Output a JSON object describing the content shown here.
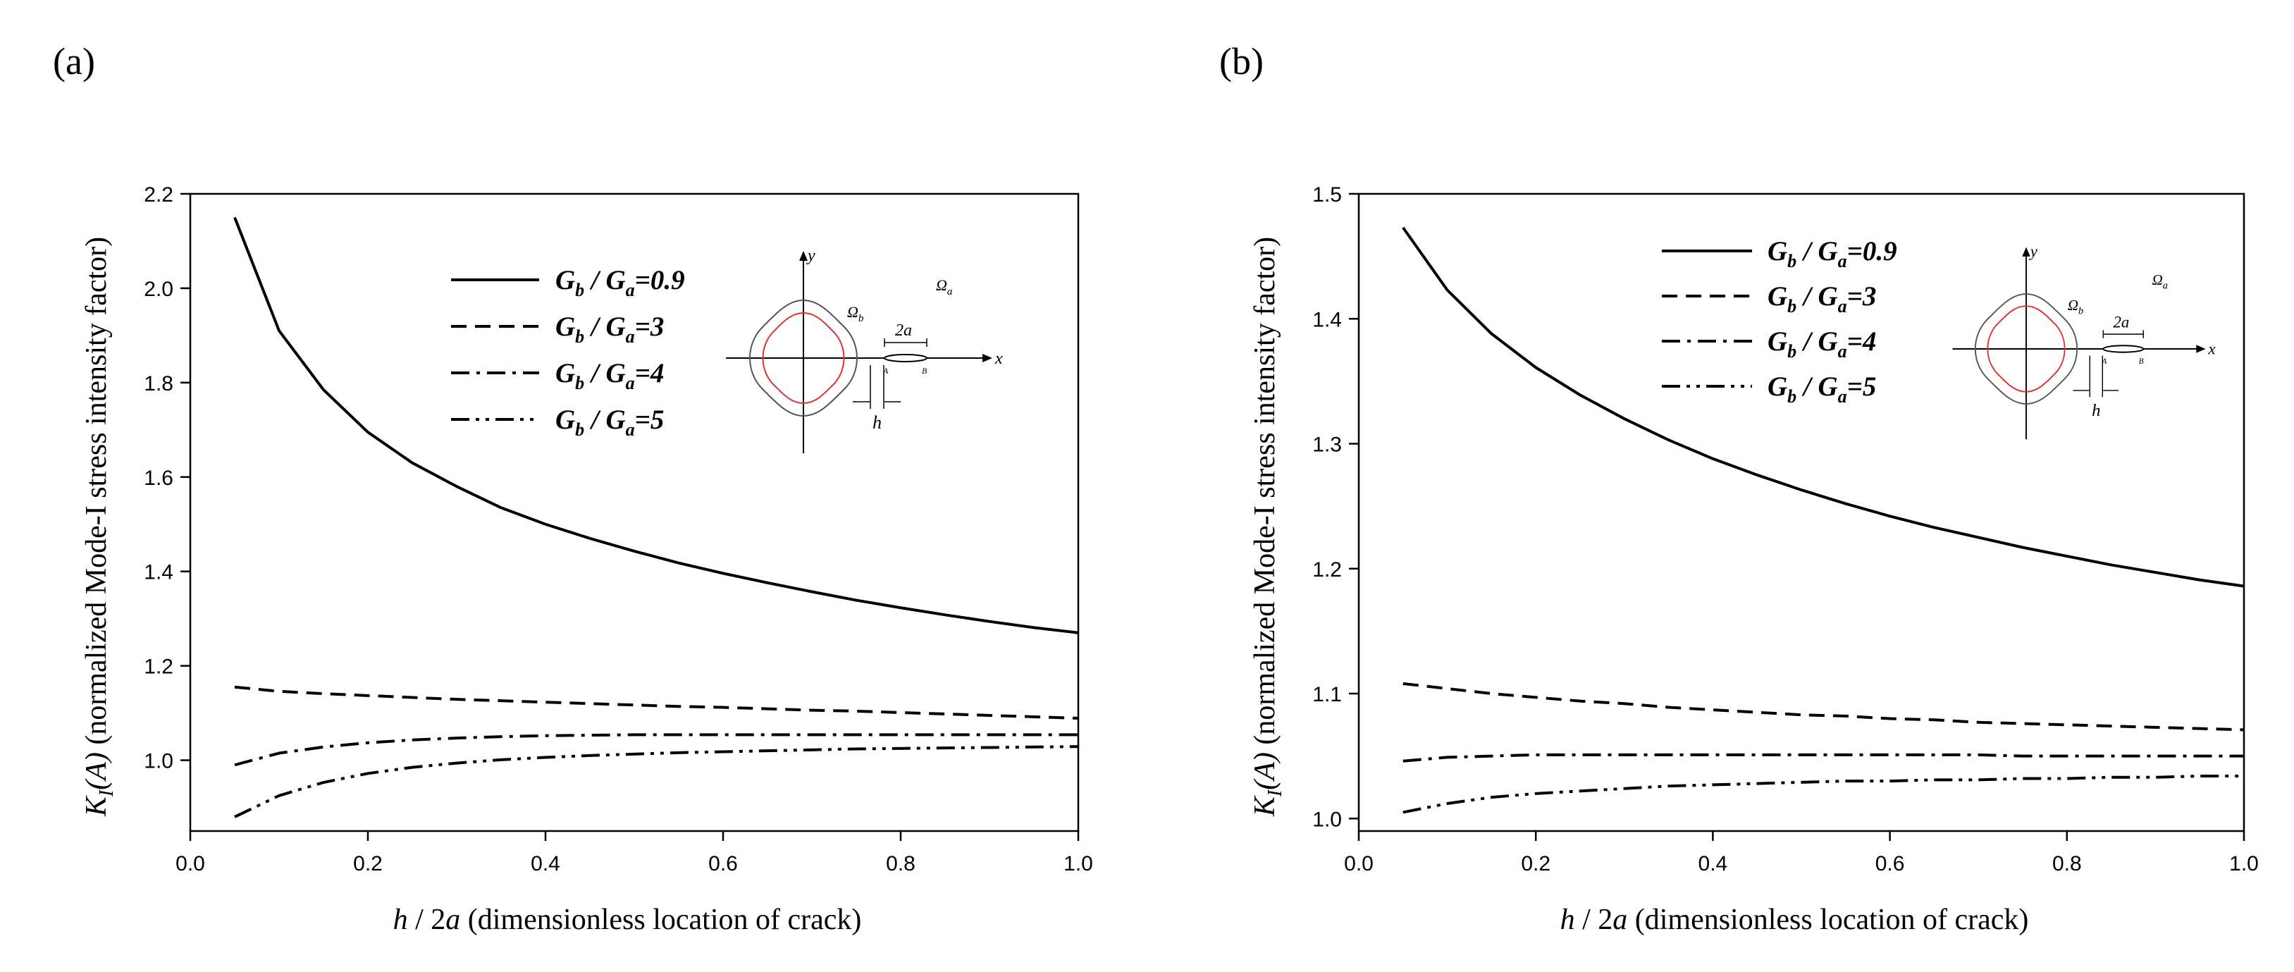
{
  "chart_data": [
    {
      "panel_label": "(a)",
      "type": "line",
      "title": "",
      "xlabel": {
        "var": "h",
        "sep": " / 2",
        "var2": "a",
        "desc": " (dimensionless location of crack)"
      },
      "ylabel": {
        "K": "K",
        "sub": "I",
        "arg": "(A)",
        "desc": " (normalized Mode-I stress intensity factor)"
      },
      "xlim": [
        0.0,
        1.0
      ],
      "ylim": [
        0.85,
        2.2
      ],
      "xticks": [
        0.0,
        0.2,
        0.4,
        0.6,
        0.8,
        1.0
      ],
      "xtick_labels": [
        "0.0",
        "0.2",
        "0.4",
        "0.6",
        "0.8",
        "1.0"
      ],
      "yticks": [
        1.0,
        1.2,
        1.4,
        1.6,
        1.8,
        2.0,
        2.2
      ],
      "ytick_labels": [
        "1.0",
        "1.2",
        "1.4",
        "1.6",
        "1.8",
        "2.0",
        "2.2"
      ],
      "grid": false,
      "legend_position": "top-center",
      "x": [
        0.05,
        0.1,
        0.15,
        0.2,
        0.25,
        0.3,
        0.35,
        0.4,
        0.45,
        0.5,
        0.55,
        0.6,
        0.65,
        0.7,
        0.75,
        0.8,
        0.85,
        0.9,
        0.95,
        1.0
      ],
      "series": [
        {
          "name": "Gb/Ga=0.9",
          "label_a": "G",
          "sub_a": "b",
          "label_b": " / G",
          "sub_b": "a",
          "label_val": "=0.9",
          "style": "solid",
          "values": [
            2.15,
            1.91,
            1.785,
            1.695,
            1.63,
            1.58,
            1.535,
            1.5,
            1.47,
            1.443,
            1.418,
            1.396,
            1.376,
            1.357,
            1.339,
            1.323,
            1.308,
            1.294,
            1.281,
            1.27
          ]
        },
        {
          "name": "Gb/Ga=3",
          "label_a": "G",
          "sub_a": "b",
          "label_b": " / G",
          "sub_b": "a",
          "label_val": "=3",
          "style": "dashed",
          "values": [
            1.155,
            1.146,
            1.141,
            1.137,
            1.133,
            1.129,
            1.126,
            1.123,
            1.12,
            1.117,
            1.114,
            1.112,
            1.109,
            1.106,
            1.104,
            1.101,
            1.098,
            1.095,
            1.092,
            1.089
          ]
        },
        {
          "name": "Gb/Ga=4",
          "label_a": "G",
          "sub_a": "b",
          "label_b": " / G",
          "sub_b": "a",
          "label_val": "=4",
          "style": "dashdot",
          "values": [
            0.99,
            1.015,
            1.028,
            1.037,
            1.043,
            1.047,
            1.05,
            1.052,
            1.053,
            1.054,
            1.054,
            1.054,
            1.054,
            1.054,
            1.054,
            1.054,
            1.054,
            1.054,
            1.054,
            1.054
          ]
        },
        {
          "name": "Gb/Ga=5",
          "label_a": "G",
          "sub_a": "b",
          "label_b": " / G",
          "sub_b": "a",
          "label_val": "=5",
          "style": "dashdotdot",
          "values": [
            0.88,
            0.925,
            0.953,
            0.972,
            0.985,
            0.994,
            1.001,
            1.006,
            1.01,
            1.013,
            1.016,
            1.018,
            1.02,
            1.022,
            1.024,
            1.025,
            1.026,
            1.027,
            1.028,
            1.029
          ]
        }
      ],
      "inset": {
        "y": "y",
        "x": "x",
        "omega_b": "Ω",
        "omega_b_sub": "b",
        "omega_a": "Ω",
        "omega_a_sub": "a",
        "crack_len": "2a",
        "h": "h",
        "A": "A",
        "B": "B"
      }
    },
    {
      "panel_label": "(b)",
      "type": "line",
      "title": "",
      "xlabel": {
        "var": "h",
        "sep": " / 2",
        "var2": "a",
        "desc": " (dimensionless location of crack)"
      },
      "ylabel": {
        "K": "K",
        "sub": "I",
        "arg": "(A)",
        "desc": " (normalized Mode-I stress intensity factor)"
      },
      "xlim": [
        0.0,
        1.0
      ],
      "ylim": [
        0.99,
        1.5
      ],
      "xticks": [
        0.0,
        0.2,
        0.4,
        0.6,
        0.8,
        1.0
      ],
      "xtick_labels": [
        "0.0",
        "0.2",
        "0.4",
        "0.6",
        "0.8",
        "1.0"
      ],
      "yticks": [
        1.0,
        1.1,
        1.2,
        1.3,
        1.4,
        1.5
      ],
      "ytick_labels": [
        "1.0",
        "1.1",
        "1.2",
        "1.3",
        "1.4",
        "1.5"
      ],
      "grid": false,
      "legend_position": "top-center",
      "x": [
        0.05,
        0.1,
        0.15,
        0.2,
        0.25,
        0.3,
        0.35,
        0.4,
        0.45,
        0.5,
        0.55,
        0.6,
        0.65,
        0.7,
        0.75,
        0.8,
        0.85,
        0.9,
        0.95,
        1.0
      ],
      "series": [
        {
          "name": "Gb/Ga=0.9",
          "label_a": "G",
          "sub_a": "b",
          "label_b": " / G",
          "sub_b": "a",
          "label_val": "=0.9",
          "style": "solid",
          "values": [
            1.473,
            1.423,
            1.388,
            1.361,
            1.339,
            1.32,
            1.303,
            1.288,
            1.275,
            1.263,
            1.252,
            1.242,
            1.233,
            1.225,
            1.217,
            1.21,
            1.203,
            1.197,
            1.191,
            1.186
          ]
        },
        {
          "name": "Gb/Ga=3",
          "label_a": "G",
          "sub_a": "b",
          "label_b": " / G",
          "sub_b": "a",
          "label_val": "=3",
          "style": "dashed",
          "values": [
            1.108,
            1.104,
            1.1,
            1.097,
            1.094,
            1.092,
            1.089,
            1.087,
            1.085,
            1.083,
            1.082,
            1.08,
            1.079,
            1.077,
            1.076,
            1.075,
            1.074,
            1.073,
            1.072,
            1.071
          ]
        },
        {
          "name": "Gb/Ga=4",
          "label_a": "G",
          "sub_a": "b",
          "label_b": " / G",
          "sub_b": "a",
          "label_val": "=4",
          "style": "dashdot",
          "values": [
            1.046,
            1.049,
            1.05,
            1.051,
            1.051,
            1.051,
            1.051,
            1.051,
            1.051,
            1.051,
            1.051,
            1.051,
            1.051,
            1.051,
            1.05,
            1.05,
            1.05,
            1.05,
            1.05,
            1.05
          ]
        },
        {
          "name": "Gb/Ga=5",
          "label_a": "G",
          "sub_a": "b",
          "label_b": " / G",
          "sub_b": "a",
          "label_val": "=5",
          "style": "dashdotdot",
          "values": [
            1.005,
            1.012,
            1.017,
            1.02,
            1.022,
            1.024,
            1.026,
            1.027,
            1.028,
            1.029,
            1.03,
            1.03,
            1.031,
            1.031,
            1.032,
            1.032,
            1.033,
            1.033,
            1.034,
            1.034
          ]
        }
      ],
      "inset": {
        "y": "y",
        "x": "x",
        "omega_b": "Ω",
        "omega_b_sub": "b",
        "omega_a": "Ω",
        "omega_a_sub": "a",
        "crack_len": "2a",
        "h": "h",
        "A": "A",
        "B": "B"
      }
    }
  ]
}
